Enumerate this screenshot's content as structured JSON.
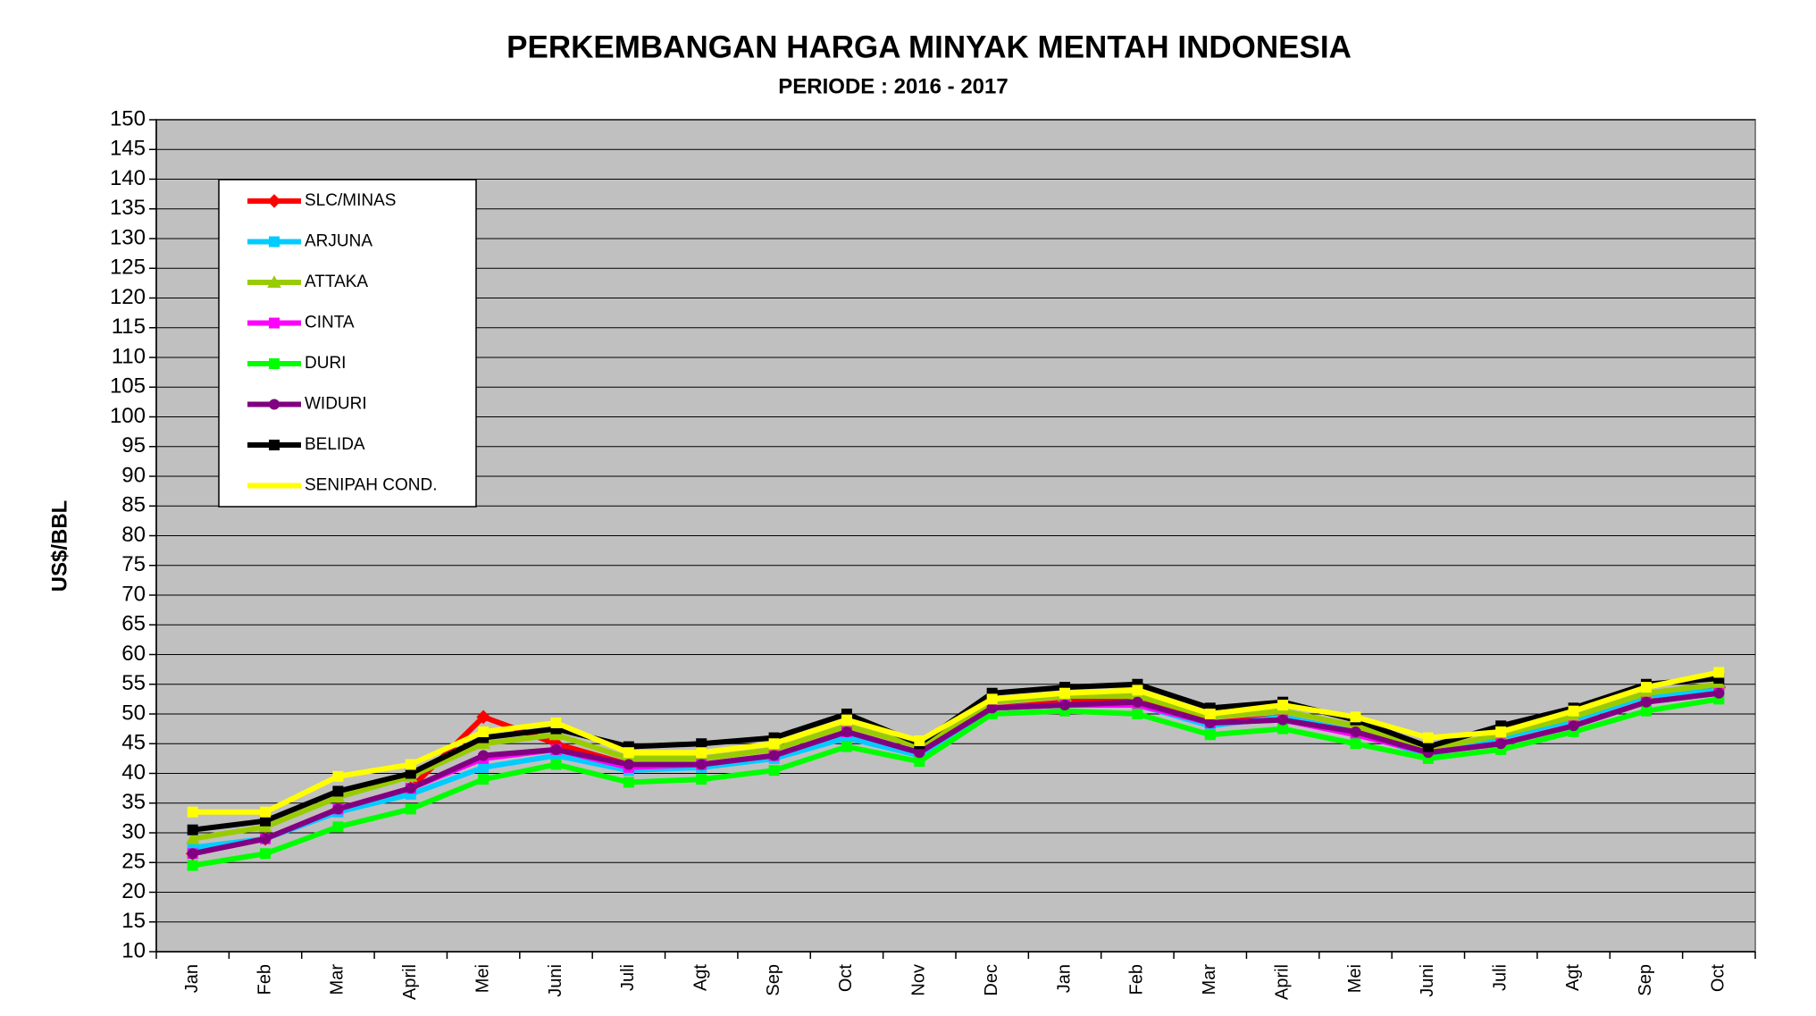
{
  "chart_data": {
    "type": "line",
    "title": "PERKEMBANGAN HARGA MINYAK MENTAH INDONESIA",
    "subtitle": "PERIODE : 2016 - 2017",
    "y_label": "US$/BBL",
    "categories": [
      "Jan",
      "Feb",
      "Mar",
      "April",
      "Mei",
      "Juni",
      "Juli",
      "Agt",
      "Sep",
      "Oct",
      "Nov",
      "Dec",
      "Jan",
      "Feb",
      "Mar",
      "April",
      "Mei",
      "Juni",
      "Juli",
      "Agt",
      "Sep",
      "Oct"
    ],
    "series": [
      {
        "name": "SLC/MINAS",
        "color": "#ff0000",
        "values": [
          26.5,
          29,
          34,
          37.5,
          49.5,
          45,
          41.5,
          41.5,
          43,
          47,
          43.5,
          51,
          52,
          53,
          48.5,
          49.5,
          47,
          43.5,
          45,
          48,
          52,
          54.5
        ]
      },
      {
        "name": "ARJUNA",
        "color": "#00ccff",
        "values": [
          27.5,
          29,
          33.5,
          36.5,
          41,
          43,
          40.5,
          41,
          42.5,
          46,
          43,
          51,
          51.5,
          51.5,
          48,
          49.5,
          47,
          43,
          46,
          49,
          53,
          54
        ]
      },
      {
        "name": "ATTAKA",
        "color": "#99cc00",
        "values": [
          29,
          31,
          36,
          39.5,
          45,
          46.5,
          42.5,
          42.5,
          44,
          48,
          44.5,
          52,
          53,
          53,
          49.5,
          50.5,
          48,
          44,
          46.5,
          49.5,
          53.5,
          55
        ]
      },
      {
        "name": "CINTA",
        "color": "#ff00ff",
        "values": [
          26.5,
          29,
          34,
          37.5,
          42.5,
          44,
          41,
          41.5,
          43,
          47,
          43.5,
          51,
          51.5,
          51.5,
          48.5,
          49,
          46.5,
          43.5,
          45,
          48,
          52,
          53.5
        ]
      },
      {
        "name": "DURI",
        "color": "#00ff00",
        "values": [
          24.5,
          26.5,
          31,
          34,
          39,
          41.5,
          38.5,
          39,
          40.5,
          44.5,
          42,
          50,
          50.5,
          50,
          46.5,
          47.5,
          45,
          42.5,
          44,
          47,
          50.5,
          52.5
        ]
      },
      {
        "name": "WIDURI",
        "color": "#800080",
        "values": [
          26.5,
          29,
          34,
          37.5,
          43,
          44,
          41.5,
          41.5,
          43,
          47,
          43.5,
          51,
          51.5,
          52,
          48.5,
          49,
          47,
          43.5,
          45,
          48,
          52,
          53.5
        ]
      },
      {
        "name": "BELIDA",
        "color": "#000000",
        "values": [
          30.5,
          32,
          37,
          40,
          46,
          47.5,
          44.5,
          45,
          46,
          50,
          45,
          53.5,
          54.5,
          55,
          51,
          52,
          49,
          44.5,
          48,
          51,
          55,
          56
        ]
      },
      {
        "name": "SENIPAH COND.",
        "color": "#ffff00",
        "values": [
          33.5,
          33.5,
          39.5,
          41.5,
          47,
          48.5,
          43.5,
          43.5,
          45,
          49,
          45.5,
          52.5,
          53.5,
          54,
          50,
          51.5,
          49.5,
          46,
          47,
          50.5,
          54.5,
          57
        ]
      }
    ],
    "ylim": [
      10,
      150
    ],
    "yticks": [
      10,
      15,
      20,
      25,
      30,
      35,
      40,
      45,
      50,
      55,
      60,
      65,
      70,
      75,
      80,
      85,
      90,
      95,
      100,
      105,
      110,
      115,
      120,
      125,
      130,
      135,
      140,
      145,
      150
    ],
    "grid": true,
    "legend": "upper left",
    "plot_background": "#c0c0c0"
  }
}
